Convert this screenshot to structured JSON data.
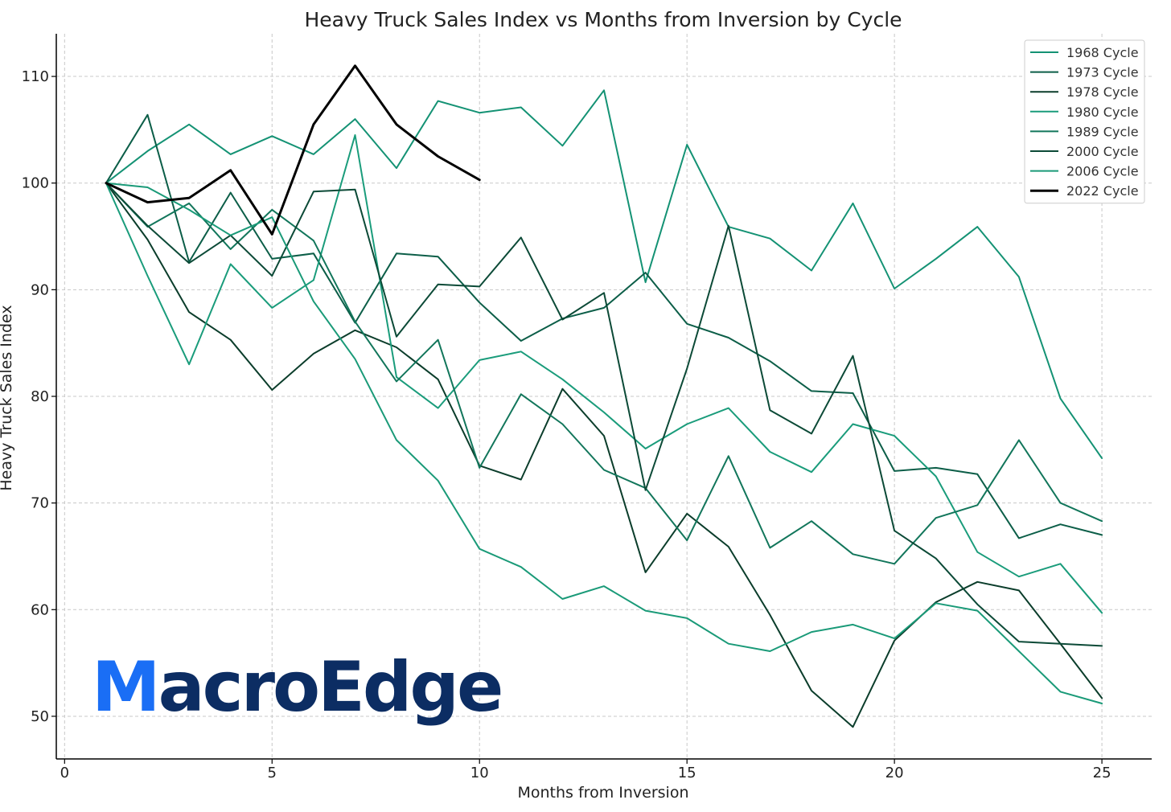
{
  "brand": {
    "logo_first": "M",
    "logo_rest": "acroEdge",
    "colors": {
      "m": "#1a6ef5",
      "text": "#0c2d63"
    }
  },
  "chart_data": {
    "type": "line",
    "title": "Heavy Truck Sales Index vs Months from Inversion by Cycle",
    "xlabel": "Months from Inversion",
    "ylabel": "Heavy Truck Sales Index",
    "xlim": [
      -0.2,
      26.2
    ],
    "ylim": [
      46,
      114
    ],
    "xticks": [
      0,
      5,
      10,
      15,
      20,
      25
    ],
    "yticks": [
      50,
      60,
      70,
      80,
      90,
      100,
      110
    ],
    "grid": true,
    "legend_position": "top-right",
    "series": [
      {
        "name": "1968 Cycle",
        "color": "#149274",
        "width": 2,
        "x": [
          1,
          2,
          3,
          4,
          5,
          6,
          7,
          8,
          9,
          10,
          11,
          12,
          13,
          14,
          15,
          16,
          17,
          18,
          19,
          20,
          21,
          22,
          23,
          24,
          25
        ],
        "y": [
          100,
          103,
          105.5,
          102.7,
          104.4,
          102.7,
          106,
          101.4,
          107.7,
          106.6,
          107.1,
          103.5,
          108.7,
          90.7,
          103.6,
          95.9,
          94.8,
          91.8,
          98.1,
          90.1,
          92.9,
          95.9,
          91.2,
          79.8,
          74.2
        ]
      },
      {
        "name": "1973 Cycle",
        "color": "#0c5e48",
        "width": 2,
        "x": [
          1,
          2,
          3,
          4,
          5,
          6,
          7,
          8,
          9,
          10,
          11,
          12,
          13,
          14,
          15,
          16,
          17,
          18,
          19,
          20,
          21,
          22,
          23,
          24,
          25
        ],
        "y": [
          100,
          106.4,
          92.6,
          99.1,
          92.9,
          93.4,
          86.9,
          93.4,
          93.1,
          88.8,
          85.2,
          87.3,
          88.3,
          91.6,
          86.8,
          85.5,
          83.3,
          80.5,
          80.3,
          73.0,
          73.3,
          72.7,
          66.7,
          68.0,
          67.0
        ]
      },
      {
        "name": "1978 Cycle",
        "color": "#0b3d2b",
        "width": 2,
        "x": [
          1,
          2,
          3,
          4,
          5,
          6,
          7,
          8,
          9,
          10,
          11,
          12,
          13,
          14,
          15,
          16,
          17,
          18,
          19,
          20,
          21,
          22,
          23,
          24,
          25
        ],
        "y": [
          100,
          94.7,
          87.9,
          85.3,
          80.6,
          84.0,
          86.2,
          84.6,
          81.6,
          73.5,
          72.2,
          80.7,
          76.3,
          63.5,
          69.0,
          65.9,
          59.5,
          52.4,
          49.0,
          57.1,
          60.7,
          62.6,
          61.8,
          56.8,
          51.7
        ]
      },
      {
        "name": "1980 Cycle",
        "color": "#1a9c7b",
        "width": 2,
        "x": [
          1,
          2,
          3,
          4,
          5,
          6,
          7,
          8,
          9,
          10,
          11,
          12,
          13,
          14,
          15,
          16,
          17,
          18,
          19,
          20,
          21,
          22,
          23,
          24,
          25
        ],
        "y": [
          100,
          91.3,
          83.0,
          92.4,
          88.3,
          90.9,
          104.5,
          81.8,
          78.9,
          83.4,
          84.2,
          81.6,
          78.5,
          75.1,
          77.4,
          78.9,
          74.8,
          72.9,
          77.4,
          76.3,
          72.5,
          65.4,
          63.1,
          64.3,
          59.7
        ]
      },
      {
        "name": "1989 Cycle",
        "color": "#12765b",
        "width": 2,
        "x": [
          1,
          2,
          3,
          4,
          5,
          6,
          7,
          8,
          9,
          10,
          11,
          12,
          13,
          14,
          15,
          16,
          17,
          18,
          19,
          20,
          21,
          22,
          23,
          24,
          25
        ],
        "y": [
          100,
          95.9,
          98.1,
          93.8,
          97.5,
          94.6,
          87.0,
          81.4,
          85.3,
          73.3,
          80.2,
          77.4,
          73.1,
          71.4,
          66.5,
          74.4,
          65.8,
          68.3,
          65.2,
          64.3,
          68.6,
          69.8,
          75.9,
          70.0,
          68.3
        ]
      },
      {
        "name": "2000 Cycle",
        "color": "#0c4a37",
        "width": 2,
        "x": [
          1,
          2,
          3,
          4,
          5,
          6,
          7,
          8,
          9,
          10,
          11,
          12,
          13,
          14,
          15,
          16,
          17,
          18,
          19,
          20,
          21,
          22,
          23,
          24,
          25
        ],
        "y": [
          100,
          96.0,
          92.5,
          95.1,
          91.3,
          99.2,
          99.4,
          85.6,
          90.5,
          90.3,
          94.9,
          87.2,
          89.7,
          71.2,
          82.6,
          96.0,
          78.7,
          76.5,
          83.8,
          67.4,
          64.8,
          60.5,
          57.0,
          56.8,
          56.6
        ]
      },
      {
        "name": "2006 Cycle",
        "color": "#1a9a78",
        "width": 2,
        "x": [
          1,
          2,
          3,
          4,
          5,
          6,
          7,
          8,
          9,
          10,
          11,
          12,
          13,
          14,
          15,
          16,
          17,
          18,
          19,
          20,
          21,
          22,
          23,
          24,
          25
        ],
        "y": [
          100,
          99.6,
          97.5,
          95.1,
          96.8,
          88.9,
          83.5,
          75.9,
          72.1,
          65.7,
          64.0,
          61.0,
          62.2,
          59.9,
          59.2,
          56.8,
          56.1,
          57.9,
          58.6,
          57.3,
          60.6,
          59.9,
          56.1,
          52.3,
          51.2
        ]
      },
      {
        "name": "2022 Cycle",
        "color": "#000000",
        "width": 3,
        "x": [
          1,
          2,
          3,
          4,
          5,
          6,
          7,
          8,
          9,
          10
        ],
        "y": [
          100,
          98.2,
          98.6,
          101.2,
          95.2,
          105.5,
          111.0,
          105.5,
          102.5,
          100.3
        ]
      }
    ]
  }
}
